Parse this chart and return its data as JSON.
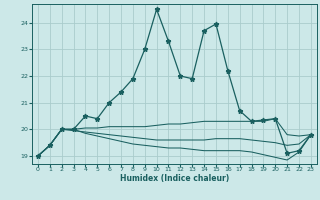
{
  "xlabel": "Humidex (Indice chaleur)",
  "background_color": "#cce8e8",
  "grid_color": "#aacccc",
  "line_color": "#1a6060",
  "xlim": [
    -0.5,
    23.5
  ],
  "ylim": [
    18.7,
    24.7
  ],
  "yticks": [
    19,
    20,
    21,
    22,
    23,
    24
  ],
  "xticks": [
    0,
    1,
    2,
    3,
    4,
    5,
    6,
    7,
    8,
    9,
    10,
    11,
    12,
    13,
    14,
    15,
    16,
    17,
    18,
    19,
    20,
    21,
    22,
    23
  ],
  "series1_x": [
    0,
    1,
    2,
    3,
    4,
    5,
    6,
    7,
    8,
    9,
    10,
    11,
    12,
    13,
    14,
    15,
    16,
    17,
    18,
    19,
    20,
    21,
    22,
    23
  ],
  "series1_y": [
    19.0,
    19.4,
    20.0,
    20.0,
    20.5,
    20.4,
    21.0,
    21.4,
    21.9,
    23.0,
    24.5,
    23.3,
    22.0,
    21.9,
    23.7,
    23.95,
    22.2,
    20.7,
    20.3,
    20.35,
    20.4,
    19.1,
    19.2,
    19.8
  ],
  "series2_x": [
    0,
    1,
    2,
    3,
    4,
    5,
    6,
    7,
    8,
    9,
    10,
    11,
    12,
    13,
    14,
    15,
    16,
    17,
    18,
    19,
    20,
    21,
    22,
    23
  ],
  "series2_y": [
    19.0,
    19.4,
    20.0,
    20.0,
    20.05,
    20.05,
    20.1,
    20.1,
    20.1,
    20.1,
    20.15,
    20.2,
    20.2,
    20.25,
    20.3,
    20.3,
    20.3,
    20.3,
    20.3,
    20.3,
    20.4,
    19.8,
    19.75,
    19.8
  ],
  "series3_x": [
    0,
    1,
    2,
    3,
    4,
    5,
    6,
    7,
    8,
    9,
    10,
    11,
    12,
    13,
    14,
    15,
    16,
    17,
    18,
    19,
    20,
    21,
    22,
    23
  ],
  "series3_y": [
    19.0,
    19.4,
    20.0,
    20.0,
    19.85,
    19.75,
    19.65,
    19.55,
    19.45,
    19.4,
    19.35,
    19.3,
    19.3,
    19.25,
    19.2,
    19.2,
    19.2,
    19.2,
    19.15,
    19.05,
    18.95,
    18.85,
    19.15,
    19.8
  ],
  "series4_x": [
    0,
    1,
    2,
    3,
    4,
    5,
    6,
    7,
    8,
    9,
    10,
    11,
    12,
    13,
    14,
    15,
    16,
    17,
    18,
    19,
    20,
    21,
    22,
    23
  ],
  "series4_y": [
    19.0,
    19.4,
    20.0,
    19.95,
    19.9,
    19.85,
    19.8,
    19.75,
    19.7,
    19.65,
    19.6,
    19.6,
    19.6,
    19.6,
    19.6,
    19.65,
    19.65,
    19.65,
    19.6,
    19.55,
    19.5,
    19.4,
    19.45,
    19.8
  ]
}
